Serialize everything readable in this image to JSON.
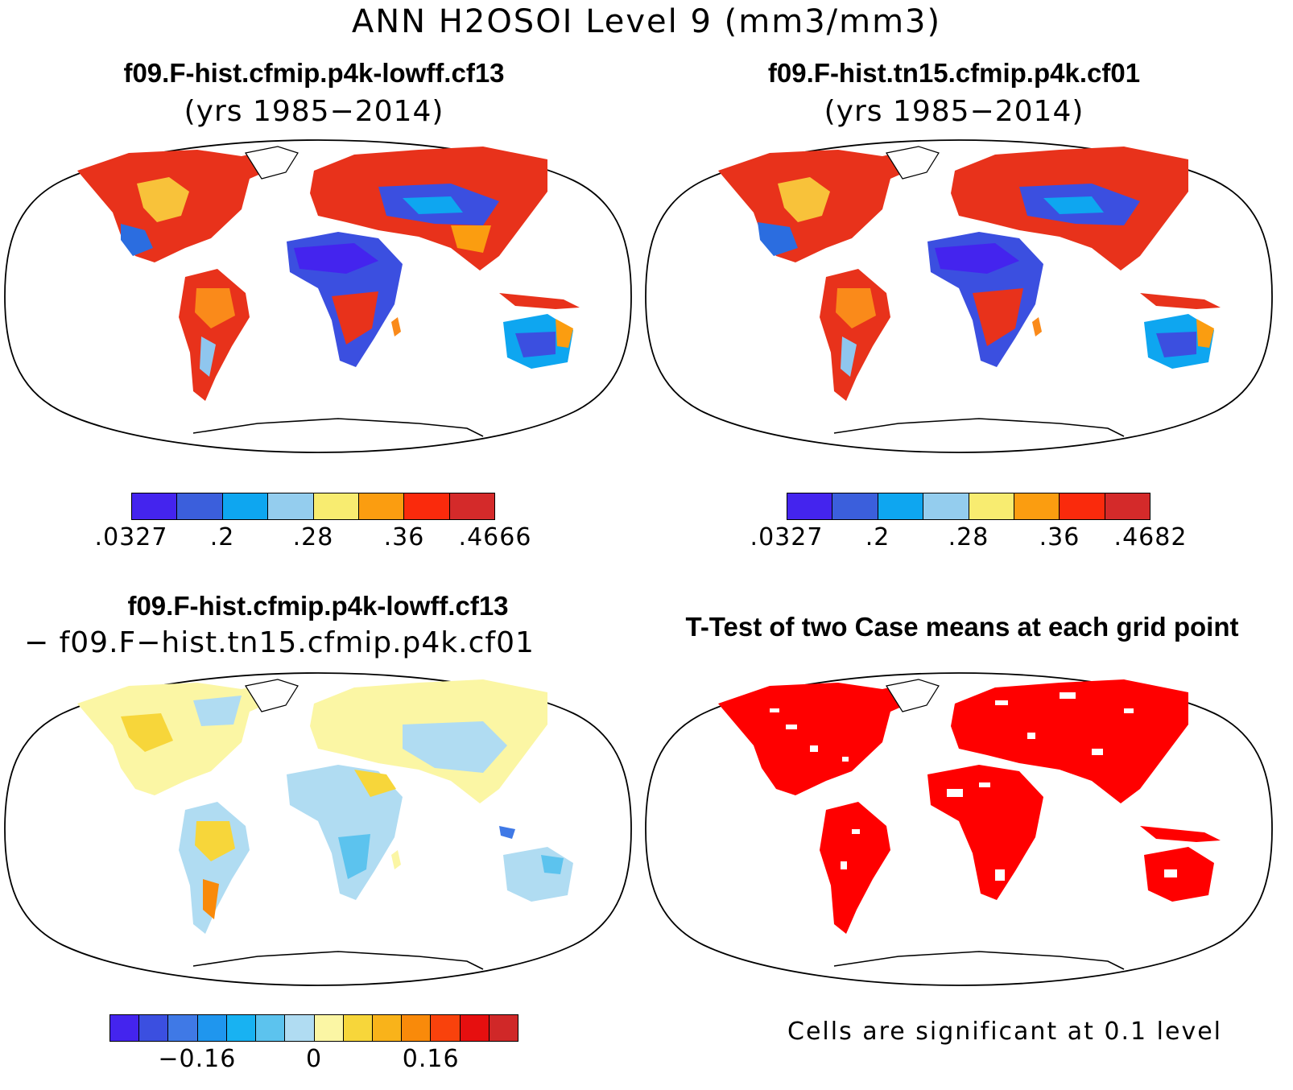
{
  "title": "ANN H2OSOI Level 9 (mm3/mm3)",
  "panels": [
    {
      "title": "f09.F-hist.cfmip.p4k-lowff.cf13",
      "subtitle": "(yrs 1985−2014)",
      "colorbar": {
        "colors": [
          "#4424ee",
          "#3b5fdc",
          "#0ea6f0",
          "#94cdee",
          "#f8ec70",
          "#fb9d10",
          "#fa2a0c",
          "#d42a2a"
        ],
        "tick_labels": [
          ".0327",
          ".2",
          ".28",
          ".36",
          ".4666"
        ],
        "tick_edges": [
          0,
          2,
          4,
          6,
          8
        ]
      }
    },
    {
      "title": "f09.F-hist.tn15.cfmip.p4k.cf01",
      "subtitle": "(yrs 1985−2014)",
      "colorbar": {
        "colors": [
          "#4424ee",
          "#3b5fdc",
          "#0ea6f0",
          "#94cdee",
          "#f8ec70",
          "#fb9d10",
          "#fa2a0c",
          "#d42a2a"
        ],
        "tick_labels": [
          ".0327",
          ".2",
          ".28",
          ".36",
          ".4682"
        ],
        "tick_edges": [
          0,
          2,
          4,
          6,
          8
        ]
      }
    },
    {
      "title": "f09.F-hist.cfmip.p4k-lowff.cf13",
      "subtitle": "− f09.F−hist.tn15.cfmip.p4k.cf01",
      "colorbar": {
        "colors": [
          "#4424ee",
          "#3b4fe0",
          "#3f79e6",
          "#1f96ee",
          "#18b2f2",
          "#5cc3ee",
          "#b0dcf2",
          "#fbf6a4",
          "#f7d63a",
          "#f9b31a",
          "#f98a0a",
          "#f9420c",
          "#e60f0f",
          "#d02828"
        ],
        "tick_labels": [
          "−0.16",
          "0",
          "0.16"
        ],
        "tick_edges": [
          3,
          7,
          11
        ]
      }
    },
    {
      "title": "T-Test of two Case means at each grid point",
      "footnote": "Cells are significant at 0.1 level",
      "significant_color": "#ff0000"
    }
  ]
}
